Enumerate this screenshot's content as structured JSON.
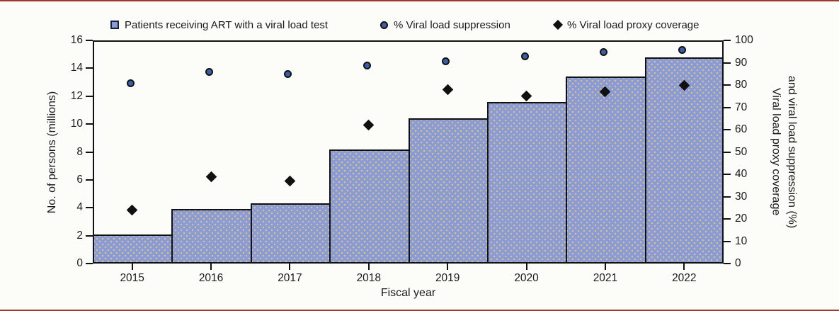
{
  "legend": [
    {
      "label": "Patients receiving ART with a viral load test",
      "marker": "square-icon"
    },
    {
      "label": "% Viral load suppression",
      "marker": "circle-icon"
    },
    {
      "label": "% Viral load proxy coverage",
      "marker": "diamond-icon"
    }
  ],
  "chart_data": {
    "type": "bar",
    "subtype": "combo-bar-scatter",
    "categories": [
      "2015",
      "2016",
      "2017",
      "2018",
      "2019",
      "2020",
      "2021",
      "2022"
    ],
    "series": [
      {
        "name": "Patients receiving ART with a viral load test",
        "type": "bar",
        "axis": "left",
        "values": [
          2.1,
          3.9,
          4.3,
          8.2,
          10.4,
          11.6,
          13.4,
          14.8
        ]
      },
      {
        "name": "% Viral load suppression",
        "type": "scatter-circle",
        "axis": "right",
        "values": [
          80,
          85,
          84,
          88,
          90,
          92,
          94,
          95
        ]
      },
      {
        "name": "% Viral load proxy coverage",
        "type": "scatter-diamond",
        "axis": "right",
        "values": [
          24,
          39,
          37,
          62,
          78,
          75,
          77,
          80
        ]
      }
    ],
    "xlabel": "Fiscal year",
    "ylabel_left": "No. of persons (millions)",
    "ylabel_right_lines": [
      "Viral load proxy coverage",
      "and viral load suppression (%)"
    ],
    "left_axis": {
      "min": 0,
      "max": 16,
      "ticks": [
        0,
        2,
        4,
        6,
        8,
        10,
        12,
        14,
        16
      ]
    },
    "right_axis": {
      "min": 0,
      "max": 100,
      "ticks": [
        0,
        10,
        20,
        30,
        40,
        50,
        60,
        70,
        80,
        90,
        100
      ]
    },
    "grid": false,
    "legend_position": "top"
  },
  "colors": {
    "background": "#fcfdf8",
    "red_rule": "#a03a2a",
    "bar_fill": "#8b9bd6",
    "bar_dot": "#d9c87e",
    "bar_border": "#111111",
    "circle_fill": "#3a5fa8",
    "diamond_fill": "#111111",
    "axis": "#111111",
    "text": "#1a1a1a"
  }
}
